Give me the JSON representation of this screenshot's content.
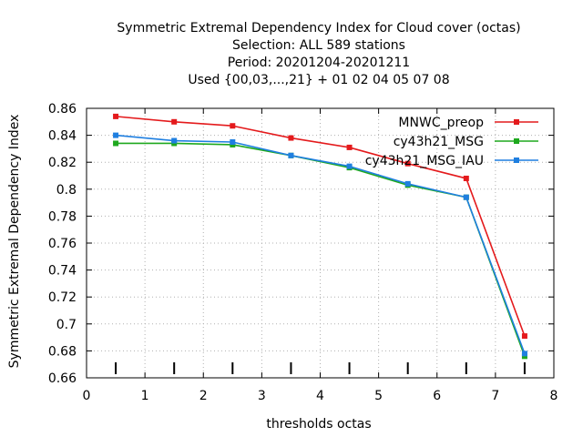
{
  "chart_data": {
    "type": "line",
    "title_lines": [
      "Symmetric Extremal Dependency Index  for Cloud cover (octas)",
      "Selection: ALL    589 stations",
      "Period: 20201204-20201211",
      "Used {00,03,...,21} + 01 02 04 05 07 08"
    ],
    "xlabel": "thresholds octas",
    "ylabel": "Symmetric Extremal Dependency Index",
    "xlim": [
      0,
      8
    ],
    "ylim": [
      0.66,
      0.86
    ],
    "xticks": [
      0,
      1,
      2,
      3,
      4,
      5,
      6,
      7,
      8
    ],
    "yticks": [
      0.66,
      0.68,
      0.7,
      0.72,
      0.74,
      0.76,
      0.78,
      0.8,
      0.82,
      0.84,
      0.86
    ],
    "ytick_labels": [
      "0.66",
      "0.68",
      "0.7",
      "0.72",
      "0.74",
      "0.76",
      "0.78",
      "0.8",
      "0.82",
      "0.84",
      "0.86"
    ],
    "grid": true,
    "legend_position": "top-right",
    "threshold_marks_x": [
      0.5,
      1.5,
      2.5,
      3.5,
      4.5,
      5.5,
      6.5,
      7.5
    ],
    "x": [
      0.5,
      1.5,
      2.5,
      3.5,
      4.5,
      5.5,
      6.5,
      7.5
    ],
    "series": [
      {
        "name": "MNWC_preop",
        "color": "#e41a1c",
        "values": [
          0.854,
          0.85,
          0.847,
          0.838,
          0.831,
          0.819,
          0.808,
          0.691
        ]
      },
      {
        "name": "cy43h21_MSG",
        "color": "#1ea81e",
        "values": [
          0.834,
          0.834,
          0.833,
          0.825,
          0.816,
          0.803,
          0.794,
          0.676
        ]
      },
      {
        "name": "cy43h21_MSG_IAU",
        "color": "#1f7fe0",
        "values": [
          0.84,
          0.836,
          0.835,
          0.825,
          0.817,
          0.804,
          0.794,
          0.678
        ]
      }
    ]
  }
}
